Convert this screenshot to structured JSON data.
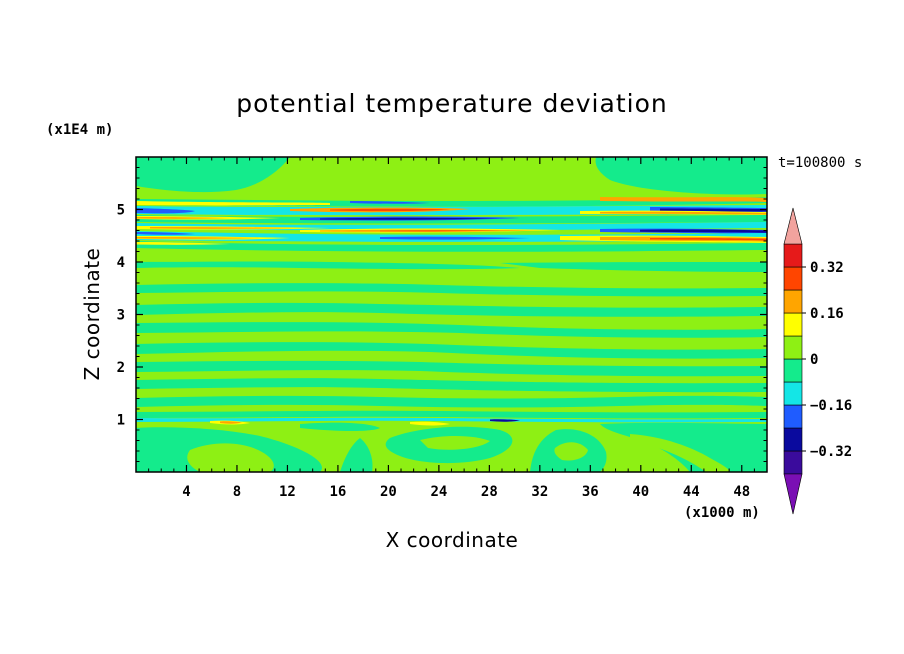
{
  "chart_data": {
    "type": "contour",
    "title": "potential temperature deviation",
    "xlabel": "X coordinate",
    "ylabel": "Z coordinate",
    "x_unit_label": "(x1000 m)",
    "y_unit_label": "(x1E4 m)",
    "time_label": "t=100800 s",
    "xlim": [
      0,
      50
    ],
    "ylim": [
      0,
      6
    ],
    "xticks": [
      4,
      8,
      12,
      16,
      20,
      24,
      28,
      32,
      36,
      40,
      44,
      48
    ],
    "xtick_labels": [
      "4",
      "8",
      "12",
      "16",
      "20",
      "24",
      "28",
      "32",
      "36",
      "40",
      "44",
      "48"
    ],
    "yticks": [
      1,
      2,
      3,
      4,
      5
    ],
    "ytick_labels": [
      "1",
      "2",
      "3",
      "4",
      "5"
    ],
    "colorbar": {
      "levels": [
        -0.4,
        -0.32,
        -0.24,
        -0.16,
        -0.08,
        0,
        0.08,
        0.16,
        0.24,
        0.32,
        0.4
      ],
      "tick_values": [
        -0.32,
        -0.16,
        0,
        0.16,
        0.32
      ],
      "tick_labels": [
        "−0.32",
        "−0.16",
        "0",
        "0.16",
        "0.32"
      ],
      "colors": [
        "#3a0b9c",
        "#0a0a9e",
        "#1f5cff",
        "#14e6e6",
        "#14eb8c",
        "#8ef014",
        "#ffff00",
        "#ffa500",
        "#ff4500",
        "#e61a1a"
      ],
      "under_color": "#7a0fb4",
      "over_color": "#f2a39e"
    }
  }
}
